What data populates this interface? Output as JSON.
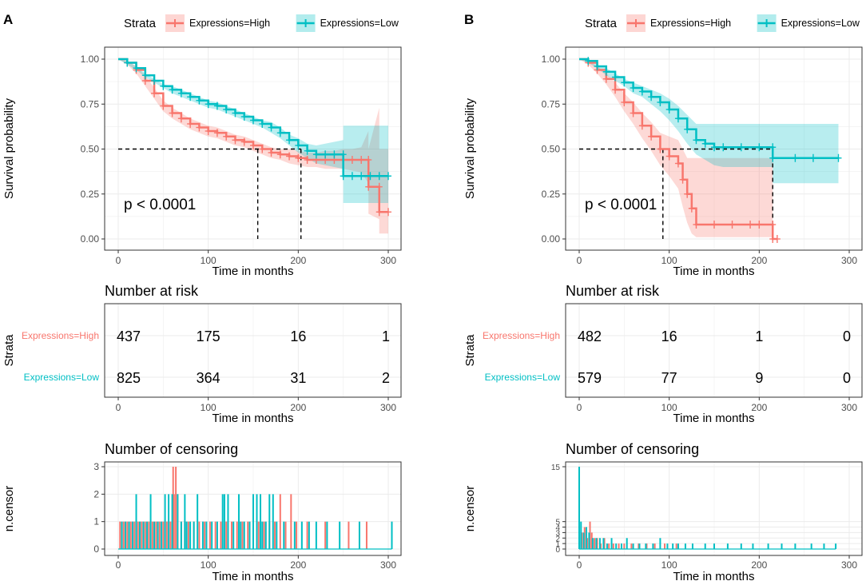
{
  "colors": {
    "high": "#F8766D",
    "low": "#00BFC4",
    "high_fill": "#F8766D",
    "low_fill": "#00BFC4",
    "grid": "#EBEBEB",
    "panel_border": "#333333",
    "axis_text": "#4D4D4D"
  },
  "chart_data": [
    {
      "panel_label": "A",
      "type": "line",
      "legend": {
        "title": "Strata",
        "entries": [
          "Expressions=High",
          "Expressions=Low"
        ]
      },
      "survival": {
        "ylabel": "Survival probability",
        "xlabel": "Time in months",
        "xlim": [
          0,
          300
        ],
        "ylim": [
          0,
          1
        ],
        "xticks": [
          "0",
          "100",
          "200",
          "300"
        ],
        "yticks": [
          "0.00",
          "0.25",
          "0.50",
          "0.75",
          "1.00"
        ],
        "pvalue": "p < 0.0001",
        "median_high": 155,
        "median_low": 203,
        "series": [
          {
            "name": "Expressions=High",
            "x": [
              0,
              10,
              20,
              30,
              40,
              50,
              60,
              70,
              80,
              90,
              100,
              110,
              120,
              130,
              140,
              150,
              160,
              170,
              180,
              190,
              200,
              210,
              220,
              230,
              240,
              250,
              260,
              270,
              278,
              278,
              290,
              290,
              300
            ],
            "y": [
              1.0,
              0.98,
              0.94,
              0.88,
              0.81,
              0.74,
              0.7,
              0.67,
              0.64,
              0.62,
              0.6,
              0.59,
              0.57,
              0.55,
              0.54,
              0.52,
              0.5,
              0.48,
              0.47,
              0.46,
              0.45,
              0.44,
              0.44,
              0.44,
              0.44,
              0.44,
              0.44,
              0.44,
              0.44,
              0.29,
              0.29,
              0.15,
              0.15
            ],
            "lower": [
              1.0,
              0.97,
              0.92,
              0.85,
              0.78,
              0.71,
              0.67,
              0.64,
              0.61,
              0.59,
              0.57,
              0.56,
              0.54,
              0.52,
              0.51,
              0.49,
              0.47,
              0.45,
              0.44,
              0.42,
              0.41,
              0.4,
              0.4,
              0.39,
              0.39,
              0.39,
              0.38,
              0.37,
              0.31,
              0.14,
              0.11,
              0.03,
              0.03
            ],
            "upper": [
              1.0,
              0.99,
              0.96,
              0.91,
              0.84,
              0.77,
              0.73,
              0.7,
              0.67,
              0.65,
              0.63,
              0.62,
              0.6,
              0.58,
              0.57,
              0.55,
              0.53,
              0.51,
              0.5,
              0.5,
              0.49,
              0.48,
              0.48,
              0.49,
              0.49,
              0.5,
              0.5,
              0.51,
              0.6,
              0.5,
              0.73,
              0.5,
              0.5
            ]
          },
          {
            "name": "Expressions=Low",
            "x": [
              0,
              10,
              20,
              30,
              40,
              50,
              60,
              70,
              80,
              90,
              100,
              110,
              120,
              130,
              140,
              150,
              160,
              170,
              180,
              190,
              200,
              210,
              220,
              230,
              240,
              250,
              250,
              260,
              270,
              280,
              290,
              300
            ],
            "y": [
              1.0,
              0.98,
              0.95,
              0.91,
              0.88,
              0.85,
              0.83,
              0.81,
              0.79,
              0.77,
              0.75,
              0.74,
              0.72,
              0.7,
              0.68,
              0.66,
              0.64,
              0.62,
              0.59,
              0.55,
              0.52,
              0.49,
              0.47,
              0.47,
              0.47,
              0.47,
              0.35,
              0.35,
              0.35,
              0.35,
              0.35,
              0.35
            ],
            "lower": [
              1.0,
              0.97,
              0.94,
              0.9,
              0.87,
              0.84,
              0.81,
              0.79,
              0.77,
              0.75,
              0.73,
              0.72,
              0.7,
              0.68,
              0.66,
              0.64,
              0.62,
              0.59,
              0.56,
              0.52,
              0.48,
              0.45,
              0.42,
              0.41,
              0.4,
              0.39,
              0.2,
              0.2,
              0.2,
              0.2,
              0.2,
              0.2
            ],
            "upper": [
              1.0,
              0.99,
              0.96,
              0.92,
              0.89,
              0.86,
              0.85,
              0.83,
              0.81,
              0.79,
              0.77,
              0.76,
              0.74,
              0.72,
              0.7,
              0.68,
              0.66,
              0.65,
              0.62,
              0.58,
              0.56,
              0.53,
              0.52,
              0.53,
              0.54,
              0.55,
              0.63,
              0.63,
              0.63,
              0.63,
              0.63,
              0.63
            ]
          }
        ]
      },
      "risk_table": {
        "title": "Number at risk",
        "ylabel": "Strata",
        "xlabel": "Time in months",
        "xticks": [
          "0",
          "100",
          "200",
          "300"
        ],
        "rows": [
          {
            "label": "Expressions=High",
            "values": [
              "437",
              "175",
              "16",
              "1"
            ]
          },
          {
            "label": "Expressions=Low",
            "values": [
              "825",
              "364",
              "31",
              "2"
            ]
          }
        ]
      },
      "censoring": {
        "title": "Number of censoring",
        "ylabel": "n.censor",
        "xlabel": "Time in months",
        "xticks": [
          "0",
          "100",
          "200",
          "300"
        ],
        "yticks": [
          "0",
          "1",
          "2",
          "3"
        ],
        "ymax": 3,
        "series": [
          {
            "name": "Expressions=High",
            "x": [
              2,
              6,
              10,
              14,
              18,
              22,
              26,
              30,
              34,
              38,
              42,
              46,
              50,
              54,
              58,
              61,
              62,
              64,
              66,
              70,
              74,
              78,
              84,
              90,
              96,
              102,
              108,
              114,
              120,
              126,
              132,
              138,
              144,
              150,
              156,
              162,
              168,
              174,
              180,
              186,
              192,
              198,
              210,
              230,
              256,
              276
            ],
            "y": [
              1,
              1,
              1,
              1,
              1,
              1,
              1,
              1,
              1,
              1,
              1,
              1,
              1,
              1,
              1,
              3,
              2,
              3,
              2,
              1,
              1,
              1,
              1,
              1,
              1,
              1,
              1,
              1,
              1,
              1,
              1,
              1,
              1,
              1,
              1,
              1,
              1,
              1,
              2,
              1,
              2,
              1,
              1,
              1,
              1,
              1
            ]
          },
          {
            "name": "Expressions=Low",
            "x": [
              4,
              8,
              12,
              16,
              20,
              24,
              28,
              32,
              36,
              40,
              44,
              48,
              52,
              56,
              60,
              66,
              70,
              74,
              76,
              80,
              84,
              88,
              94,
              98,
              104,
              110,
              116,
              118,
              122,
              128,
              134,
              136,
              140,
              146,
              150,
              154,
              158,
              160,
              164,
              168,
              172,
              176,
              184,
              196,
              204,
              212,
              220,
              232,
              246,
              268,
              304
            ],
            "y": [
              1,
              1,
              1,
              1,
              2,
              1,
              1,
              1,
              2,
              1,
              1,
              1,
              2,
              2,
              2,
              2,
              1,
              2,
              1,
              1,
              1,
              2,
              1,
              1,
              1,
              1,
              2,
              2,
              2,
              1,
              2,
              1,
              1,
              1,
              2,
              2,
              2,
              1,
              1,
              2,
              2,
              1,
              1,
              1,
              1,
              1,
              1,
              1,
              1,
              1,
              1
            ]
          }
        ]
      }
    },
    {
      "panel_label": "B",
      "type": "line",
      "legend": {
        "title": "Strata",
        "entries": [
          "Expressions=High",
          "Expressions=Low"
        ]
      },
      "survival": {
        "ylabel": "Survival probability",
        "xlabel": "Time in months",
        "xlim": [
          0,
          300
        ],
        "ylim": [
          0,
          1
        ],
        "xticks": [
          "0",
          "100",
          "200",
          "300"
        ],
        "yticks": [
          "0.00",
          "0.25",
          "0.50",
          "0.75",
          "1.00"
        ],
        "pvalue": "p < 0.0001",
        "median_high": 93,
        "median_low": 215,
        "series": [
          {
            "name": "Expressions=High",
            "x": [
              0,
              10,
              20,
              30,
              40,
              50,
              60,
              70,
              80,
              90,
              100,
              110,
              115,
              120,
              125,
              130,
              150,
              170,
              190,
              200,
              215,
              215,
              220
            ],
            "y": [
              1.0,
              0.98,
              0.94,
              0.89,
              0.83,
              0.76,
              0.7,
              0.63,
              0.57,
              0.5,
              0.46,
              0.42,
              0.33,
              0.25,
              0.17,
              0.08,
              0.08,
              0.08,
              0.08,
              0.08,
              0.08,
              0.0,
              0.0
            ],
            "lower": [
              1.0,
              0.97,
              0.92,
              0.86,
              0.79,
              0.71,
              0.64,
              0.56,
              0.49,
              0.41,
              0.35,
              0.28,
              0.18,
              0.09,
              0.03,
              0.01,
              0.01,
              0.01,
              0.01,
              0.01,
              0.01,
              0.0,
              0.0
            ],
            "upper": [
              1.0,
              0.99,
              0.96,
              0.92,
              0.87,
              0.81,
              0.76,
              0.7,
              0.65,
              0.59,
              0.57,
              0.55,
              0.5,
              0.45,
              0.45,
              0.45,
              0.45,
              0.45,
              0.45,
              0.45,
              0.45,
              0.0,
              0.0
            ]
          },
          {
            "name": "Expressions=Low",
            "x": [
              0,
              10,
              20,
              30,
              40,
              50,
              60,
              70,
              80,
              90,
              100,
              110,
              120,
              130,
              140,
              150,
              160,
              180,
              200,
              215,
              215,
              240,
              260,
              288
            ],
            "y": [
              1.0,
              0.99,
              0.96,
              0.93,
              0.9,
              0.87,
              0.84,
              0.82,
              0.79,
              0.76,
              0.72,
              0.67,
              0.61,
              0.55,
              0.53,
              0.51,
              0.51,
              0.51,
              0.51,
              0.51,
              0.45,
              0.45,
              0.45,
              0.45
            ],
            "lower": [
              1.0,
              0.98,
              0.95,
              0.91,
              0.88,
              0.85,
              0.81,
              0.79,
              0.75,
              0.71,
              0.66,
              0.6,
              0.53,
              0.47,
              0.44,
              0.41,
              0.4,
              0.4,
              0.4,
              0.4,
              0.31,
              0.31,
              0.31,
              0.31
            ],
            "upper": [
              1.0,
              1.0,
              0.97,
              0.95,
              0.92,
              0.89,
              0.87,
              0.85,
              0.83,
              0.81,
              0.78,
              0.74,
              0.69,
              0.64,
              0.64,
              0.64,
              0.64,
              0.64,
              0.64,
              0.64,
              0.64,
              0.64,
              0.64,
              0.64
            ]
          }
        ]
      },
      "risk_table": {
        "title": "Number at risk",
        "ylabel": "Strata",
        "xlabel": "Time in months",
        "xticks": [
          "0",
          "100",
          "200",
          "300"
        ],
        "rows": [
          {
            "label": "Expressions=High",
            "values": [
              "482",
              "16",
              "1",
              "0"
            ]
          },
          {
            "label": "Expressions=Low",
            "values": [
              "579",
              "77",
              "9",
              "0"
            ]
          }
        ]
      },
      "censoring": {
        "title": "Number of censoring",
        "ylabel": "n.censor",
        "xlabel": "Time in months",
        "xticks": [
          "0",
          "100",
          "200",
          "300"
        ],
        "yticks": [
          "0",
          "1",
          "2",
          "3",
          "4",
          "5",
          "15"
        ],
        "ymax": 15,
        "series": [
          {
            "name": "Expressions=High",
            "x": [
              3,
              6,
              9,
              12,
              14,
              17,
              20,
              24,
              28,
              33,
              38,
              44,
              50,
              58,
              66,
              75,
              84,
              95,
              108
            ],
            "y": [
              3,
              4,
              2,
              5,
              3,
              2,
              2,
              1,
              2,
              1,
              1,
              1,
              1,
              1,
              1,
              1,
              1,
              1,
              1
            ]
          },
          {
            "name": "Expressions=Low",
            "x": [
              0,
              2,
              5,
              8,
              11,
              15,
              19,
              23,
              27,
              31,
              36,
              41,
              47,
              53,
              60,
              67,
              74,
              82,
              90,
              98,
              104,
              110,
              118,
              126,
              140,
              150,
              165,
              180,
              193,
              210,
              225,
              240,
              258,
              272,
              285
            ],
            "y": [
              15,
              5,
              3,
              4,
              3,
              2,
              2,
              2,
              2,
              1,
              2,
              1,
              1,
              2,
              1,
              1,
              1,
              1,
              2,
              1,
              1,
              1,
              1,
              1,
              1,
              1,
              1,
              1,
              1,
              1,
              1,
              1,
              1,
              1,
              1
            ]
          }
        ]
      }
    }
  ]
}
